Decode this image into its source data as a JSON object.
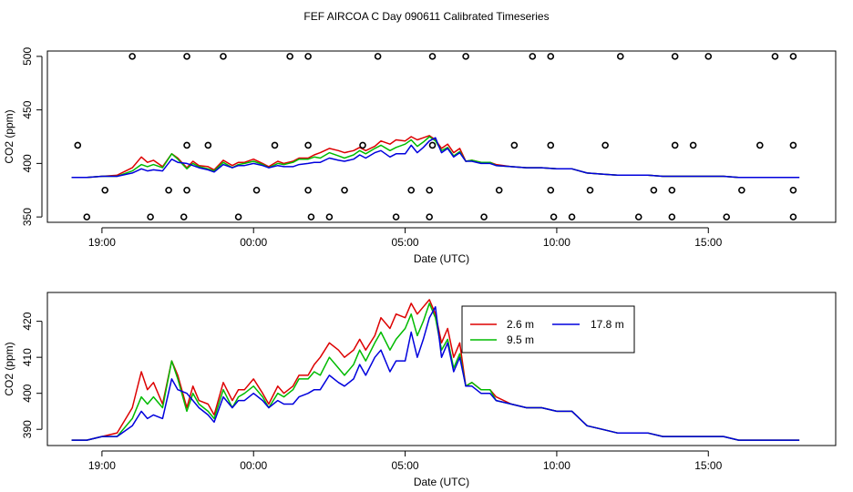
{
  "title": "FEF AIRCOA C  Day 090611  Calibrated Timeseries",
  "colors": {
    "series_2_6": "#dd0000",
    "series_9_5": "#00bb00",
    "series_17_8": "#0000dd",
    "axis": "#000000",
    "background": "#ffffff"
  },
  "chart_data": [
    {
      "type": "line",
      "title": "",
      "xlabel": "Date (UTC)",
      "ylabel": "CO2 (ppm)",
      "x_unit": "hours since 00:00 UTC",
      "xlim": [
        -6.8,
        19.2
      ],
      "ylim": [
        345,
        505
      ],
      "xticks": [
        -5,
        0,
        5,
        10,
        15
      ],
      "xtick_labels": [
        "19:00",
        "00:00",
        "05:00",
        "10:00",
        "15:00"
      ],
      "yticks": [
        350,
        400,
        450,
        500
      ],
      "ytick_labels": [
        "350",
        "400",
        "450",
        "500"
      ],
      "grid": false,
      "note": "series as in panel 2; open circles are flag markers",
      "markers": [
        {
          "x": -5.5,
          "y": 350
        },
        {
          "x": -3.4,
          "y": 350
        },
        {
          "x": -2.3,
          "y": 350
        },
        {
          "x": -0.5,
          "y": 350
        },
        {
          "x": 1.9,
          "y": 350
        },
        {
          "x": 2.5,
          "y": 350
        },
        {
          "x": 4.7,
          "y": 350
        },
        {
          "x": 5.8,
          "y": 350
        },
        {
          "x": 7.6,
          "y": 350
        },
        {
          "x": 9.9,
          "y": 350
        },
        {
          "x": 10.5,
          "y": 350
        },
        {
          "x": 12.7,
          "y": 350
        },
        {
          "x": 13.8,
          "y": 350
        },
        {
          "x": 15.6,
          "y": 350
        },
        {
          "x": 17.8,
          "y": 350
        },
        {
          "x": -4.9,
          "y": 375
        },
        {
          "x": -2.8,
          "y": 375
        },
        {
          "x": -2.2,
          "y": 375
        },
        {
          "x": 0.1,
          "y": 375
        },
        {
          "x": 1.8,
          "y": 375
        },
        {
          "x": 3.0,
          "y": 375
        },
        {
          "x": 5.2,
          "y": 375
        },
        {
          "x": 5.8,
          "y": 375
        },
        {
          "x": 8.1,
          "y": 375
        },
        {
          "x": 9.8,
          "y": 375
        },
        {
          "x": 11.1,
          "y": 375
        },
        {
          "x": 13.2,
          "y": 375
        },
        {
          "x": 13.8,
          "y": 375
        },
        {
          "x": 16.1,
          "y": 375
        },
        {
          "x": 17.8,
          "y": 375
        },
        {
          "x": -5.8,
          "y": 417
        },
        {
          "x": -2.2,
          "y": 417
        },
        {
          "x": -1.5,
          "y": 417
        },
        {
          "x": 0.7,
          "y": 417
        },
        {
          "x": 1.8,
          "y": 417
        },
        {
          "x": 3.6,
          "y": 417
        },
        {
          "x": 5.9,
          "y": 417
        },
        {
          "x": 8.6,
          "y": 417
        },
        {
          "x": 9.8,
          "y": 417
        },
        {
          "x": 11.6,
          "y": 417
        },
        {
          "x": 13.9,
          "y": 417
        },
        {
          "x": 14.5,
          "y": 417
        },
        {
          "x": 16.7,
          "y": 417
        },
        {
          "x": 17.8,
          "y": 417
        },
        {
          "x": -4.0,
          "y": 500
        },
        {
          "x": -2.2,
          "y": 500
        },
        {
          "x": -1.0,
          "y": 500
        },
        {
          "x": 1.2,
          "y": 500
        },
        {
          "x": 1.8,
          "y": 500
        },
        {
          "x": 4.1,
          "y": 500
        },
        {
          "x": 5.9,
          "y": 500
        },
        {
          "x": 7.0,
          "y": 500
        },
        {
          "x": 9.2,
          "y": 500
        },
        {
          "x": 9.8,
          "y": 500
        },
        {
          "x": 12.1,
          "y": 500
        },
        {
          "x": 13.9,
          "y": 500
        },
        {
          "x": 15.0,
          "y": 500
        },
        {
          "x": 17.2,
          "y": 500
        },
        {
          "x": 17.8,
          "y": 500
        }
      ]
    },
    {
      "type": "line",
      "title": "",
      "xlabel": "Date (UTC)",
      "ylabel": "CO2 (ppm)",
      "x_unit": "hours since 00:00 UTC",
      "xlim": [
        -6.8,
        19.2
      ],
      "ylim": [
        385.5,
        428
      ],
      "xticks": [
        -5,
        0,
        5,
        10,
        15
      ],
      "xtick_labels": [
        "19:00",
        "00:00",
        "05:00",
        "10:00",
        "15:00"
      ],
      "yticks": [
        390,
        400,
        410,
        420
      ],
      "ytick_labels": [
        "390",
        "400",
        "410",
        "420"
      ],
      "grid": false,
      "legend": {
        "position": "top-right",
        "entries": [
          "2.6 m",
          "9.5 m",
          "17.8 m"
        ]
      },
      "series": [
        {
          "name": "2.6 m",
          "x": [
            -6.0,
            -5.5,
            -5.0,
            -4.5,
            -4.0,
            -3.7,
            -3.5,
            -3.3,
            -3.0,
            -2.7,
            -2.5,
            -2.2,
            -2.0,
            -1.8,
            -1.5,
            -1.3,
            -1.0,
            -0.7,
            -0.5,
            -0.3,
            0.0,
            0.3,
            0.5,
            0.8,
            1.0,
            1.3,
            1.5,
            1.8,
            2.0,
            2.2,
            2.5,
            2.8,
            3.0,
            3.3,
            3.5,
            3.7,
            4.0,
            4.2,
            4.5,
            4.7,
            5.0,
            5.2,
            5.4,
            5.6,
            5.8,
            6.0,
            6.2,
            6.4,
            6.6,
            6.8,
            7.0,
            7.2,
            7.5,
            7.8,
            8.0,
            8.5,
            9.0,
            9.5,
            10.0,
            10.5,
            11.0,
            11.5,
            12.0,
            12.5,
            13.0,
            13.5,
            14.0,
            14.5,
            15.0,
            15.5,
            16.0,
            16.5,
            17.0,
            17.5,
            18.0
          ],
          "values": [
            387,
            387,
            388,
            389,
            396,
            406,
            401,
            403,
            397,
            409,
            405,
            396,
            402,
            398,
            397,
            394,
            403,
            398,
            401,
            401,
            404,
            400,
            397,
            402,
            400,
            402,
            405,
            405,
            408,
            410,
            414,
            412,
            410,
            412,
            415,
            412,
            416,
            421,
            418,
            422,
            421,
            425,
            422,
            424,
            426,
            422,
            414,
            418,
            410,
            414,
            402,
            403,
            401,
            401,
            399,
            397,
            396,
            396,
            395,
            395,
            391,
            390,
            389,
            389,
            389,
            388,
            388,
            388,
            388,
            388,
            387,
            387,
            387,
            387,
            387
          ]
        },
        {
          "name": "9.5 m",
          "x": [
            -6.0,
            -5.5,
            -5.0,
            -4.5,
            -4.0,
            -3.7,
            -3.5,
            -3.3,
            -3.0,
            -2.7,
            -2.5,
            -2.2,
            -2.0,
            -1.8,
            -1.5,
            -1.3,
            -1.0,
            -0.7,
            -0.5,
            -0.3,
            0.0,
            0.3,
            0.5,
            0.8,
            1.0,
            1.3,
            1.5,
            1.8,
            2.0,
            2.2,
            2.5,
            2.8,
            3.0,
            3.3,
            3.5,
            3.7,
            4.0,
            4.2,
            4.5,
            4.7,
            5.0,
            5.2,
            5.4,
            5.6,
            5.8,
            6.0,
            6.2,
            6.4,
            6.6,
            6.8,
            7.0,
            7.2,
            7.5,
            7.8,
            8.0,
            8.5,
            9.0,
            9.5,
            10.0,
            10.5,
            11.0,
            11.5,
            12.0,
            12.5,
            13.0,
            13.5,
            14.0,
            14.5,
            15.0,
            15.5,
            16.0,
            16.5,
            17.0,
            17.5,
            18.0
          ],
          "values": [
            387,
            387,
            388,
            388,
            393,
            399,
            397,
            399,
            396,
            409,
            404,
            395,
            400,
            397,
            395,
            393,
            401,
            396,
            399,
            400,
            402,
            399,
            396,
            400,
            399,
            401,
            404,
            404,
            406,
            405,
            410,
            407,
            405,
            408,
            412,
            409,
            414,
            417,
            412,
            415,
            418,
            422,
            416,
            420,
            425,
            421,
            412,
            415,
            407,
            411,
            402,
            403,
            401,
            401,
            398,
            397,
            396,
            396,
            395,
            395,
            391,
            390,
            389,
            389,
            389,
            388,
            388,
            388,
            388,
            388,
            387,
            387,
            387,
            387,
            387
          ]
        },
        {
          "name": "17.8 m",
          "x": [
            -6.0,
            -5.5,
            -5.0,
            -4.5,
            -4.0,
            -3.7,
            -3.5,
            -3.3,
            -3.0,
            -2.7,
            -2.5,
            -2.2,
            -2.0,
            -1.8,
            -1.5,
            -1.3,
            -1.0,
            -0.7,
            -0.5,
            -0.3,
            0.0,
            0.3,
            0.5,
            0.8,
            1.0,
            1.3,
            1.5,
            1.8,
            2.0,
            2.2,
            2.5,
            2.8,
            3.0,
            3.3,
            3.5,
            3.7,
            4.0,
            4.2,
            4.5,
            4.7,
            5.0,
            5.2,
            5.4,
            5.6,
            5.8,
            6.0,
            6.2,
            6.4,
            6.6,
            6.8,
            7.0,
            7.2,
            7.5,
            7.8,
            8.0,
            8.5,
            9.0,
            9.5,
            10.0,
            10.5,
            11.0,
            11.5,
            12.0,
            12.5,
            13.0,
            13.5,
            14.0,
            14.5,
            15.0,
            15.5,
            16.0,
            16.5,
            17.0,
            17.5,
            18.0
          ],
          "values": [
            387,
            387,
            388,
            388,
            391,
            395,
            393,
            394,
            393,
            404,
            401,
            400,
            398,
            396,
            394,
            392,
            399,
            396,
            398,
            398,
            400,
            398,
            396,
            398,
            397,
            397,
            399,
            400,
            401,
            401,
            405,
            403,
            402,
            404,
            408,
            405,
            410,
            412,
            406,
            409,
            409,
            417,
            410,
            415,
            421,
            424,
            410,
            414,
            406,
            410,
            402,
            402,
            400,
            400,
            398,
            397,
            396,
            396,
            395,
            395,
            391,
            390,
            389,
            389,
            389,
            388,
            388,
            388,
            388,
            388,
            387,
            387,
            387,
            387,
            387
          ]
        }
      ]
    }
  ]
}
